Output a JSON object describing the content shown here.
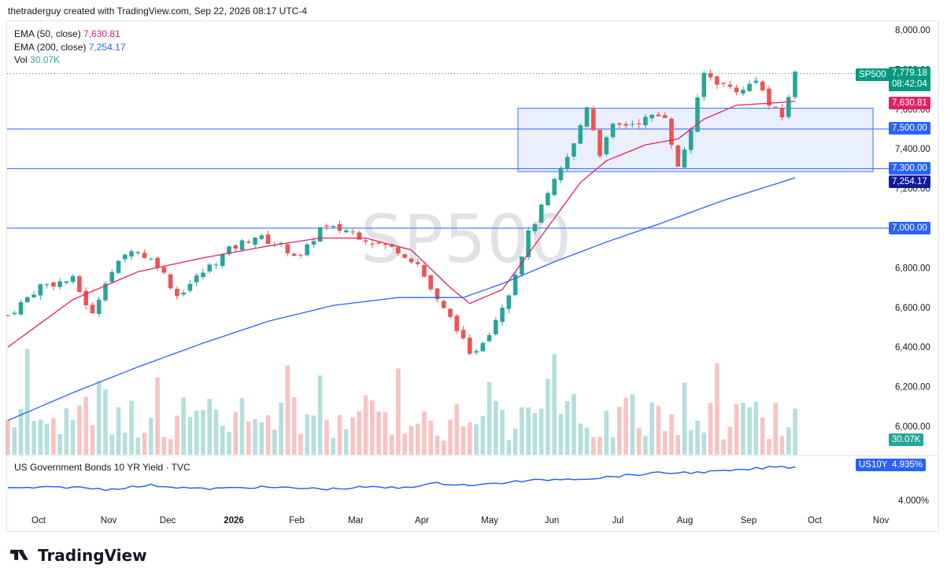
{
  "header": {
    "text": "thetraderguy created with TradingView.com, Sep 22, 2026 08:17 UTC-4"
  },
  "legend": {
    "ema50_label": "EMA (50, close)",
    "ema50_value": "7,630.81",
    "ema200_label": "EMA (200, close)",
    "ema200_value": "7,254.17",
    "vol_label": "Vol",
    "vol_value": "30.07K"
  },
  "watermark": "SP500",
  "lower_pane": {
    "label": "US Government Bonds 10 YR Yield · TVC",
    "symbol": "US10Y",
    "value": "4.935%",
    "tick": "4.000%"
  },
  "price_tags": {
    "symbol": "SP500",
    "price": "7,779.18",
    "countdown": "08:42:04",
    "ema50": "7,630.81",
    "level_7500": "7,500.00",
    "level_7300": "7,300.00",
    "ema200": "7,254.17",
    "level_7000": "7,000.00",
    "volume": "30.07K"
  },
  "brand": {
    "name": "TradingView"
  },
  "colors": {
    "up": "#26a69a",
    "down": "#ef5350",
    "ema50": "#e91e63",
    "ema200": "#2962ff",
    "box_fill": "#e8eefc",
    "box_border": "#2962ff",
    "hline": "#2962ff"
  },
  "chart_data": {
    "type": "candlestick",
    "symbol": "SP500",
    "y_ticks": [
      "8,000.00",
      "7,800.00",
      "7,600.00",
      "7,400.00",
      "7,200.00",
      "7,000.00",
      "6,800.00",
      "6,600.00",
      "6,400.00",
      "6,200.00",
      "6,000.00"
    ],
    "x_ticks": [
      "Oct",
      "Nov",
      "Dec",
      "2026",
      "Feb",
      "Mar",
      "Apr",
      "May",
      "Jun",
      "Jul",
      "Aug",
      "Sep",
      "Oct",
      "Nov"
    ],
    "last_price": 7779.18,
    "horizontal_levels": [
      7500,
      7300,
      7000
    ],
    "rectangle": {
      "from": "mid-May",
      "to": "late Sep",
      "top": 7605,
      "bottom": 7285
    },
    "price_path": [
      [
        0,
        6560
      ],
      [
        5,
        6710
      ],
      [
        10,
        6740
      ],
      [
        13,
        6560
      ],
      [
        15,
        6740
      ],
      [
        19,
        6900
      ],
      [
        23,
        6820
      ],
      [
        26,
        6660
      ],
      [
        29,
        6750
      ],
      [
        34,
        6890
      ],
      [
        38,
        6960
      ],
      [
        42,
        6910
      ],
      [
        45,
        6850
      ],
      [
        48,
        7000
      ],
      [
        52,
        6990
      ],
      [
        57,
        6920
      ],
      [
        60,
        6890
      ],
      [
        63,
        6820
      ],
      [
        66,
        6630
      ],
      [
        69,
        6500
      ],
      [
        71,
        6350
      ],
      [
        74,
        6480
      ],
      [
        77,
        6680
      ],
      [
        80,
        6970
      ],
      [
        84,
        7230
      ],
      [
        87,
        7420
      ],
      [
        89,
        7620
      ],
      [
        91,
        7380
      ],
      [
        93,
        7510
      ],
      [
        96,
        7530
      ],
      [
        99,
        7560
      ],
      [
        101,
        7570
      ],
      [
        103,
        7300
      ],
      [
        105,
        7500
      ],
      [
        107,
        7780
      ],
      [
        110,
        7720
      ],
      [
        113,
        7690
      ],
      [
        115,
        7760
      ],
      [
        117,
        7620
      ],
      [
        119,
        7560
      ],
      [
        121,
        7779
      ]
    ],
    "ema50_path": [
      [
        0,
        6400
      ],
      [
        10,
        6640
      ],
      [
        20,
        6780
      ],
      [
        30,
        6850
      ],
      [
        40,
        6910
      ],
      [
        48,
        6950
      ],
      [
        55,
        6950
      ],
      [
        62,
        6890
      ],
      [
        68,
        6700
      ],
      [
        71,
        6620
      ],
      [
        76,
        6690
      ],
      [
        82,
        6960
      ],
      [
        88,
        7230
      ],
      [
        92,
        7340
      ],
      [
        98,
        7420
      ],
      [
        103,
        7450
      ],
      [
        107,
        7550
      ],
      [
        112,
        7620
      ],
      [
        117,
        7630
      ],
      [
        121,
        7640
      ]
    ],
    "ema200_path": [
      [
        0,
        6030
      ],
      [
        10,
        6170
      ],
      [
        20,
        6300
      ],
      [
        30,
        6420
      ],
      [
        40,
        6530
      ],
      [
        50,
        6610
      ],
      [
        60,
        6650
      ],
      [
        65,
        6650
      ],
      [
        70,
        6650
      ],
      [
        76,
        6720
      ],
      [
        84,
        6830
      ],
      [
        92,
        6930
      ],
      [
        100,
        7020
      ],
      [
        110,
        7140
      ],
      [
        121,
        7254
      ]
    ],
    "volume_note": "volume histogram, last value 30.07K",
    "us10y": {
      "name": "US Government Bonds 10 YR Yield",
      "last": 4.935,
      "path": [
        [
          0,
          4.37
        ],
        [
          10,
          4.4
        ],
        [
          15,
          4.34
        ],
        [
          22,
          4.45
        ],
        [
          30,
          4.35
        ],
        [
          38,
          4.4
        ],
        [
          45,
          4.37
        ],
        [
          50,
          4.35
        ],
        [
          55,
          4.4
        ],
        [
          60,
          4.38
        ],
        [
          66,
          4.5
        ],
        [
          72,
          4.45
        ],
        [
          78,
          4.55
        ],
        [
          85,
          4.62
        ],
        [
          90,
          4.64
        ],
        [
          95,
          4.72
        ],
        [
          100,
          4.78
        ],
        [
          106,
          4.8
        ],
        [
          112,
          4.85
        ],
        [
          118,
          4.95
        ],
        [
          121,
          4.935
        ]
      ]
    }
  }
}
